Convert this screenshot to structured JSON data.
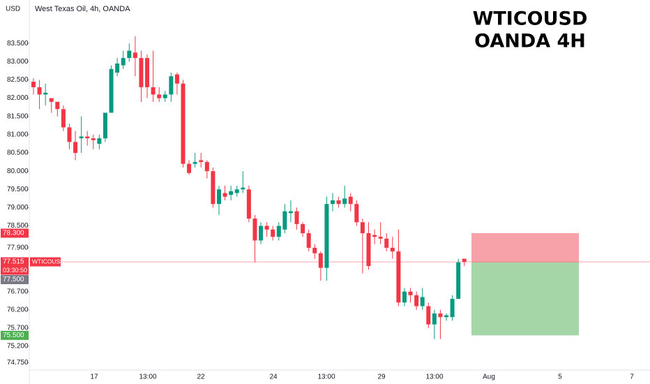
{
  "chart_data": {
    "type": "candlestick",
    "symbol_currency": "USD",
    "legend": "West Texas Oil, 4h, OANDA",
    "title_lines": [
      "WTICOUSD",
      "OANDA 4H"
    ],
    "up_color": "#089981",
    "down_color": "#f23645",
    "ylim": [
      74.55,
      84.69
    ],
    "yticks": [
      {
        "value": 83.5,
        "label": "83.500"
      },
      {
        "value": 83,
        "label": "83.000"
      },
      {
        "value": 82.5,
        "label": "82.500"
      },
      {
        "value": 82,
        "label": "82.000"
      },
      {
        "value": 81.5,
        "label": "81.500"
      },
      {
        "value": 81,
        "label": "81.000"
      },
      {
        "value": 80.5,
        "label": "80.500"
      },
      {
        "value": 80,
        "label": "80.000"
      },
      {
        "value": 79.5,
        "label": "79.500"
      },
      {
        "value": 79,
        "label": "79.000"
      },
      {
        "value": 78.5,
        "label": "78.500"
      },
      {
        "value": 77.9,
        "label": "77.900"
      },
      {
        "value": 76.7,
        "label": "76.700"
      },
      {
        "value": 76.2,
        "label": "76.200"
      },
      {
        "value": 75.7,
        "label": "75.700"
      },
      {
        "value": 75.2,
        "label": "75.200"
      },
      {
        "value": 74.75,
        "label": "74.750"
      }
    ],
    "time_labels": [
      "17",
      "13:00",
      "22",
      "24",
      "13:00",
      "29",
      "13:00",
      "Aug",
      "5",
      "7"
    ],
    "candles": [
      {
        "o": 82.45,
        "h": 82.55,
        "l": 82.1,
        "c": 82.3
      },
      {
        "o": 82.3,
        "h": 82.5,
        "l": 81.7,
        "c": 82.1
      },
      {
        "o": 82.1,
        "h": 82.4,
        "l": 81.8,
        "c": 82.15
      },
      {
        "o": 82.0,
        "h": 82.0,
        "l": 81.6,
        "c": 81.9
      },
      {
        "o": 81.9,
        "h": 81.9,
        "l": 81.5,
        "c": 81.7
      },
      {
        "o": 81.7,
        "h": 81.8,
        "l": 81.1,
        "c": 81.2
      },
      {
        "o": 81.2,
        "h": 81.3,
        "l": 80.6,
        "c": 80.8
      },
      {
        "o": 80.8,
        "h": 81.1,
        "l": 80.3,
        "c": 80.5
      },
      {
        "o": 80.9,
        "h": 81.5,
        "l": 80.5,
        "c": 80.95
      },
      {
        "o": 80.95,
        "h": 81.1,
        "l": 80.7,
        "c": 80.9
      },
      {
        "o": 80.9,
        "h": 81.0,
        "l": 80.6,
        "c": 80.85
      },
      {
        "o": 80.75,
        "h": 81.0,
        "l": 80.6,
        "c": 80.9
      },
      {
        "o": 80.9,
        "h": 81.6,
        "l": 80.8,
        "c": 81.6
      },
      {
        "o": 81.6,
        "h": 82.9,
        "l": 81.6,
        "c": 82.8
      },
      {
        "o": 82.7,
        "h": 83.1,
        "l": 82.6,
        "c": 82.95
      },
      {
        "o": 82.9,
        "h": 83.3,
        "l": 82.8,
        "c": 83.1
      },
      {
        "o": 83.1,
        "h": 83.5,
        "l": 83.0,
        "c": 83.3
      },
      {
        "o": 83.25,
        "h": 83.7,
        "l": 82.6,
        "c": 83.1
      },
      {
        "o": 83.1,
        "h": 83.3,
        "l": 81.9,
        "c": 82.3
      },
      {
        "o": 83.1,
        "h": 83.2,
        "l": 82.0,
        "c": 82.3
      },
      {
        "o": 82.3,
        "h": 83.3,
        "l": 81.9,
        "c": 82.1
      },
      {
        "o": 82.1,
        "h": 82.3,
        "l": 81.9,
        "c": 82.0
      },
      {
        "o": 82.0,
        "h": 82.2,
        "l": 81.9,
        "c": 82.1
      },
      {
        "o": 82.1,
        "h": 82.7,
        "l": 81.9,
        "c": 82.6
      },
      {
        "o": 82.65,
        "h": 82.7,
        "l": 82.1,
        "c": 82.4
      },
      {
        "o": 82.4,
        "h": 82.5,
        "l": 80.1,
        "c": 80.2
      },
      {
        "o": 80.2,
        "h": 80.3,
        "l": 79.9,
        "c": 79.95
      },
      {
        "o": 80.2,
        "h": 80.5,
        "l": 80.1,
        "c": 80.25
      },
      {
        "o": 80.3,
        "h": 80.5,
        "l": 80.1,
        "c": 80.25
      },
      {
        "o": 80.25,
        "h": 80.3,
        "l": 79.8,
        "c": 80.0
      },
      {
        "o": 80.0,
        "h": 80.1,
        "l": 79.0,
        "c": 79.1
      },
      {
        "o": 79.1,
        "h": 79.6,
        "l": 78.8,
        "c": 79.5
      },
      {
        "o": 79.4,
        "h": 79.6,
        "l": 79.2,
        "c": 79.3
      },
      {
        "o": 79.35,
        "h": 79.6,
        "l": 79.2,
        "c": 79.45
      },
      {
        "o": 79.4,
        "h": 79.6,
        "l": 79.3,
        "c": 79.5
      },
      {
        "o": 79.5,
        "h": 80.0,
        "l": 79.4,
        "c": 79.55
      },
      {
        "o": 79.5,
        "h": 79.6,
        "l": 78.6,
        "c": 78.7
      },
      {
        "o": 78.7,
        "h": 78.8,
        "l": 77.5,
        "c": 78.1
      },
      {
        "o": 78.1,
        "h": 78.6,
        "l": 78.0,
        "c": 78.5
      },
      {
        "o": 78.5,
        "h": 78.6,
        "l": 78.2,
        "c": 78.4
      },
      {
        "o": 78.4,
        "h": 78.5,
        "l": 78.1,
        "c": 78.2
      },
      {
        "o": 78.2,
        "h": 78.6,
        "l": 78.1,
        "c": 78.5
      },
      {
        "o": 78.4,
        "h": 79.1,
        "l": 78.3,
        "c": 78.9
      },
      {
        "o": 78.85,
        "h": 79.2,
        "l": 78.6,
        "c": 78.9
      },
      {
        "o": 78.9,
        "h": 79.0,
        "l": 78.4,
        "c": 78.55
      },
      {
        "o": 78.55,
        "h": 78.6,
        "l": 78.2,
        "c": 78.3
      },
      {
        "o": 78.3,
        "h": 78.4,
        "l": 77.8,
        "c": 77.9
      },
      {
        "o": 77.9,
        "h": 78.0,
        "l": 77.6,
        "c": 77.75
      },
      {
        "o": 77.75,
        "h": 77.8,
        "l": 77.0,
        "c": 77.35
      },
      {
        "o": 77.35,
        "h": 79.3,
        "l": 77.0,
        "c": 79.1
      },
      {
        "o": 79.1,
        "h": 79.4,
        "l": 78.9,
        "c": 79.2
      },
      {
        "o": 79.2,
        "h": 79.3,
        "l": 79.0,
        "c": 79.1
      },
      {
        "o": 79.1,
        "h": 79.6,
        "l": 79.0,
        "c": 79.25
      },
      {
        "o": 79.3,
        "h": 79.4,
        "l": 78.9,
        "c": 79.1
      },
      {
        "o": 79.1,
        "h": 79.2,
        "l": 78.5,
        "c": 78.6
      },
      {
        "o": 78.6,
        "h": 78.7,
        "l": 77.2,
        "c": 78.3
      },
      {
        "o": 78.3,
        "h": 78.6,
        "l": 77.3,
        "c": 77.4
      },
      {
        "o": 78.25,
        "h": 78.4,
        "l": 78.0,
        "c": 78.2
      },
      {
        "o": 78.2,
        "h": 78.6,
        "l": 78.0,
        "c": 78.15
      },
      {
        "o": 78.15,
        "h": 78.3,
        "l": 77.8,
        "c": 77.9
      },
      {
        "o": 77.9,
        "h": 78.2,
        "l": 77.6,
        "c": 77.8
      },
      {
        "o": 77.8,
        "h": 78.4,
        "l": 76.3,
        "c": 76.4
      },
      {
        "o": 76.4,
        "h": 76.8,
        "l": 76.3,
        "c": 76.7
      },
      {
        "o": 76.7,
        "h": 76.8,
        "l": 76.4,
        "c": 76.6
      },
      {
        "o": 76.6,
        "h": 76.7,
        "l": 76.2,
        "c": 76.3
      },
      {
        "o": 76.3,
        "h": 76.8,
        "l": 76.2,
        "c": 76.55
      },
      {
        "o": 76.3,
        "h": 76.4,
        "l": 75.7,
        "c": 75.8
      },
      {
        "o": 75.8,
        "h": 76.2,
        "l": 75.4,
        "c": 76.1
      },
      {
        "o": 76.1,
        "h": 76.2,
        "l": 75.4,
        "c": 76.0
      },
      {
        "o": 76.0,
        "h": 76.1,
        "l": 75.9,
        "c": 76.05
      },
      {
        "o": 76.0,
        "h": 76.6,
        "l": 75.9,
        "c": 76.5
      },
      {
        "o": 76.5,
        "h": 77.6,
        "l": 76.5,
        "c": 77.5
      },
      {
        "o": 77.6,
        "h": 77.6,
        "l": 77.4,
        "c": 77.515
      }
    ],
    "last_price": {
      "value": 77.515,
      "label": "77.515"
    },
    "last_symbol": "WTICOUSD",
    "countdown": "03:30:50",
    "position": {
      "stop": {
        "value": 78.3,
        "label": "78.300"
      },
      "entry": {
        "value": 77.5,
        "label": "77.500"
      },
      "target": {
        "value": 75.5,
        "label": "75.500"
      }
    }
  }
}
